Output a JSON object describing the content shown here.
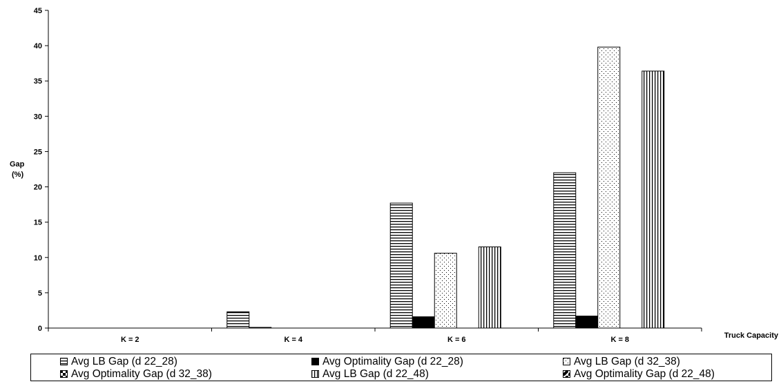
{
  "chart_data": {
    "type": "bar",
    "title": "",
    "ylabel": "Gap\n(%)",
    "xlabel": "Truck Capacity",
    "categories": [
      "K = 2",
      "K = 4",
      "K = 6",
      "K = 8"
    ],
    "ylim": [
      0,
      45
    ],
    "yticks": [
      0,
      5,
      10,
      15,
      20,
      25,
      30,
      35,
      40,
      45
    ],
    "grid": false,
    "legend_position": "bottom",
    "series": [
      {
        "name": "Avg LB Gap (d 22_28)",
        "pattern": "horizontal-lines",
        "values": [
          0,
          2.3,
          17.7,
          22.0
        ]
      },
      {
        "name": "Avg Optimality Gap (d 22_28)",
        "pattern": "solid",
        "values": [
          0,
          0.05,
          1.6,
          1.7
        ]
      },
      {
        "name": "Avg LB Gap (d 32_38)",
        "pattern": "dots",
        "values": [
          0,
          0,
          10.6,
          39.8
        ]
      },
      {
        "name": "Avg Optimality Gap (d 32_38)",
        "pattern": "checker",
        "values": [
          0,
          0,
          0,
          0
        ]
      },
      {
        "name": "Avg LB Gap (d 22_48)",
        "pattern": "vertical-lines",
        "values": [
          0,
          0,
          11.5,
          36.4
        ]
      },
      {
        "name": "Avg Optimality Gap (d 22_48)",
        "pattern": "diagonal",
        "values": [
          0,
          0,
          0,
          0
        ]
      }
    ]
  }
}
